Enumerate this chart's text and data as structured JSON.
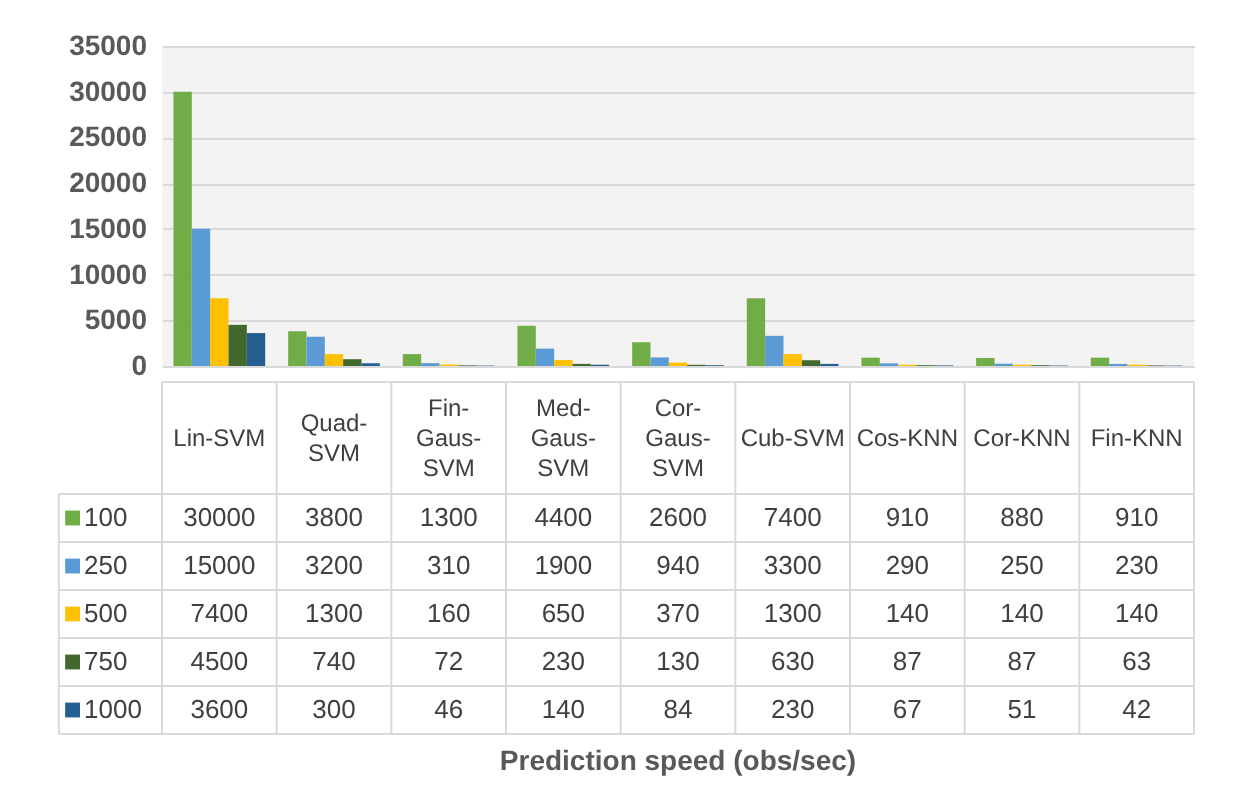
{
  "chart_data": {
    "type": "bar",
    "annotations": [
      "Prediction speed (obs/sec)"
    ],
    "categories": [
      "Lin-SVM",
      "Quad-SVM",
      "Fin-Gaus-SVM",
      "Med-Gaus-SVM",
      "Cor-Gaus-SVM",
      "Cub-SVM",
      "Cos-KNN",
      "Cor-KNN",
      "Fin-KNN"
    ],
    "series": [
      {
        "name": "100",
        "color": "#70ad47",
        "values": [
          30000,
          3800,
          1300,
          4400,
          2600,
          7400,
          910,
          880,
          910
        ]
      },
      {
        "name": "250",
        "color": "#5b9bd5",
        "values": [
          15000,
          3200,
          310,
          1900,
          940,
          3300,
          290,
          250,
          230
        ]
      },
      {
        "name": "500",
        "color": "#ffc000",
        "values": [
          7400,
          1300,
          160,
          650,
          370,
          1300,
          140,
          140,
          140
        ]
      },
      {
        "name": "750",
        "color": "#43682b",
        "values": [
          4500,
          740,
          72,
          230,
          130,
          630,
          87,
          87,
          63
        ]
      },
      {
        "name": "1000",
        "color": "#255e91",
        "values": [
          3600,
          300,
          46,
          140,
          84,
          230,
          67,
          51,
          42
        ]
      }
    ],
    "ylim": [
      0,
      35000
    ],
    "yticks": [
      0,
      5000,
      10000,
      15000,
      20000,
      25000,
      30000,
      35000
    ],
    "grid": "y",
    "legend": "bottom",
    "data_labels": true
  }
}
